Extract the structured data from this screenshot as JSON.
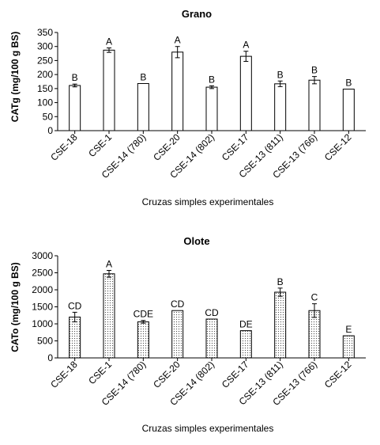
{
  "chart_data": [
    {
      "type": "bar",
      "title": "Grano",
      "xlabel": "Cruzas simples experimentales",
      "ylabel": "CATg (mg/100 g BS)",
      "categories": [
        "CSE-18",
        "CSE-1",
        "CSE-14 (780)",
        "CSE-20",
        "CSE-14 (802)",
        "CSE-17",
        "CSE-13 (811)",
        "CSE-13 (766)",
        "CSE-12"
      ],
      "values": [
        161,
        287,
        168,
        280,
        155,
        265,
        167,
        180,
        148
      ],
      "errors": [
        5,
        8,
        0,
        20,
        5,
        18,
        10,
        13,
        0
      ],
      "labels": [
        "B",
        "A",
        "B",
        "A",
        "B",
        "A",
        "B",
        "B",
        "B"
      ],
      "ylim": [
        0,
        350
      ],
      "yticks": [
        0,
        50,
        100,
        150,
        200,
        250,
        300,
        350
      ],
      "fill": "white"
    },
    {
      "type": "bar",
      "title": "Olote",
      "xlabel": "Cruzas simples experimentales",
      "ylabel": "CATo (mg/100 g BS)",
      "categories": [
        "CSE-18",
        "CSE-1",
        "CSE-14 (780)",
        "CSE-20",
        "CSE-14 (802)",
        "CSE-17",
        "CSE-13 (811)",
        "CSE-13 (766)",
        "CSE-12"
      ],
      "values": [
        1200,
        2470,
        1060,
        1390,
        1140,
        800,
        1930,
        1390,
        650
      ],
      "errors": [
        140,
        100,
        40,
        0,
        0,
        0,
        120,
        200,
        0
      ],
      "labels": [
        "CD",
        "A",
        "CDE",
        "CD",
        "CD",
        "DE",
        "B",
        "C",
        "E"
      ],
      "ylim": [
        0,
        3000
      ],
      "yticks": [
        0,
        500,
        1000,
        1500,
        2000,
        2500,
        3000
      ],
      "fill": "dotted"
    }
  ],
  "colors": {
    "bar_stroke": "#000000",
    "axis": "#000000",
    "dots": "#555555"
  }
}
